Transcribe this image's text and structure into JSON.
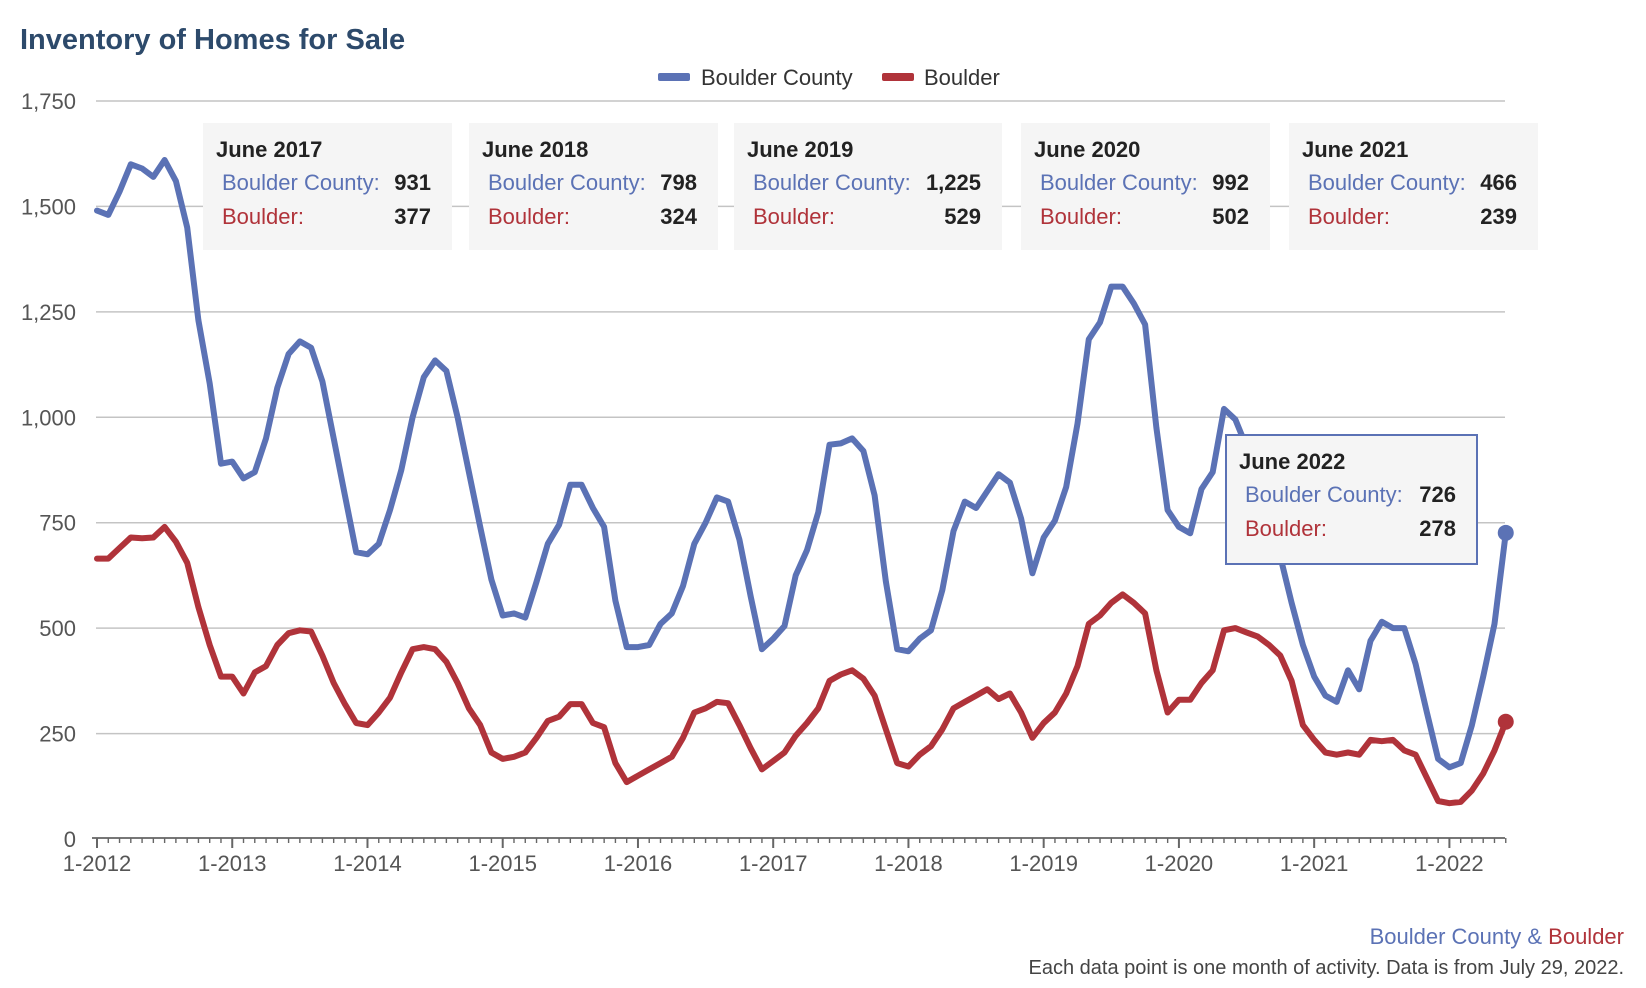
{
  "title": "Inventory of Homes for Sale",
  "footer": {
    "source_a": "Boulder County",
    "source_sep": " & ",
    "source_b": "Boulder",
    "note": "Each data point is one month of activity. Data is from July 29, 2022."
  },
  "colors": {
    "series_a": "#5b72b5",
    "series_b": "#b0333a",
    "grid": "#c4c4c4",
    "axis": "#666666"
  },
  "chart_data": {
    "type": "line",
    "title": "Inventory of Homes for Sale",
    "xlabel": "",
    "ylabel": "",
    "ylim": [
      0,
      1750
    ],
    "yticks": [
      "0",
      "250",
      "500",
      "750",
      "1,000",
      "1,250",
      "1,500",
      "1,750"
    ],
    "yticks_values": [
      0,
      250,
      500,
      750,
      1000,
      1250,
      1500,
      1750
    ],
    "x_tick_labels": [
      "1-2012",
      "1-2013",
      "1-2014",
      "1-2015",
      "1-2016",
      "1-2017",
      "1-2018",
      "1-2019",
      "1-2020",
      "1-2021",
      "1-2022"
    ],
    "x_start": "2012-01",
    "x_end": "2022-06",
    "grid": true,
    "legend_position": "top-center",
    "series": [
      {
        "name": "Boulder County",
        "color": "#5b72b5",
        "values": [
          1490,
          1480,
          1535,
          1600,
          1590,
          1570,
          1610,
          1560,
          1450,
          1230,
          1080,
          890,
          895,
          855,
          870,
          950,
          1070,
          1150,
          1180,
          1165,
          1085,
          950,
          815,
          680,
          675,
          700,
          780,
          875,
          1000,
          1095,
          1135,
          1110,
          1000,
          870,
          740,
          615,
          530,
          535,
          525,
          610,
          700,
          745,
          840,
          840,
          785,
          740,
          565,
          455,
          455,
          460,
          510,
          535,
          600,
          700,
          750,
          810,
          800,
          710,
          575,
          450,
          475,
          505,
          625,
          685,
          775,
          935,
          938,
          950,
          920,
          815,
          610,
          450,
          445,
          475,
          495,
          590,
          730,
          800,
          785,
          825,
          865,
          845,
          760,
          630,
          715,
          755,
          835,
          985,
          1185,
          1225,
          1310,
          1310,
          1270,
          1220,
          975,
          780,
          740,
          725,
          830,
          870,
          1020,
          995,
          930,
          870,
          760,
          670,
          560,
          460,
          385,
          340,
          325,
          400,
          355,
          470,
          515,
          500,
          500,
          415,
          300,
          190,
          170,
          180,
          270,
          385,
          510,
          726
        ],
        "last_display": "726"
      },
      {
        "name": "Boulder",
        "color": "#b0333a",
        "values": [
          665,
          665,
          690,
          715,
          713,
          715,
          740,
          705,
          655,
          550,
          460,
          385,
          385,
          345,
          395,
          410,
          460,
          488,
          495,
          492,
          435,
          370,
          320,
          275,
          270,
          300,
          335,
          395,
          450,
          455,
          450,
          420,
          370,
          310,
          270,
          205,
          190,
          195,
          205,
          240,
          280,
          290,
          320,
          320,
          275,
          265,
          180,
          135,
          150,
          165,
          180,
          195,
          240,
          300,
          310,
          325,
          322,
          270,
          215,
          165,
          185,
          205,
          245,
          275,
          310,
          375,
          390,
          400,
          380,
          340,
          260,
          180,
          172,
          200,
          220,
          260,
          310,
          325,
          340,
          355,
          332,
          345,
          300,
          240,
          275,
          300,
          345,
          410,
          510,
          530,
          560,
          580,
          560,
          535,
          400,
          300,
          330,
          330,
          370,
          400,
          495,
          500,
          490,
          480,
          460,
          435,
          375,
          270,
          235,
          205,
          200,
          205,
          200,
          235,
          232,
          235,
          210,
          200,
          145,
          90,
          85,
          88,
          115,
          155,
          210,
          278
        ],
        "last_display": "278"
      }
    ],
    "annotations": [
      {
        "label": "June 2017",
        "series_a": "931",
        "series_b": "377"
      },
      {
        "label": "June 2018",
        "series_a": "798",
        "series_b": "324"
      },
      {
        "label": "June 2019",
        "series_a": "1,225",
        "series_b": "529"
      },
      {
        "label": "June 2020",
        "series_a": "992",
        "series_b": "502"
      },
      {
        "label": "June 2021",
        "series_a": "466",
        "series_b": "239"
      },
      {
        "label": "June 2022",
        "series_a": "726",
        "series_b": "278",
        "highlighted": true
      }
    ],
    "annotation_label_a": "Boulder County:",
    "annotation_label_b": "Boulder:"
  }
}
